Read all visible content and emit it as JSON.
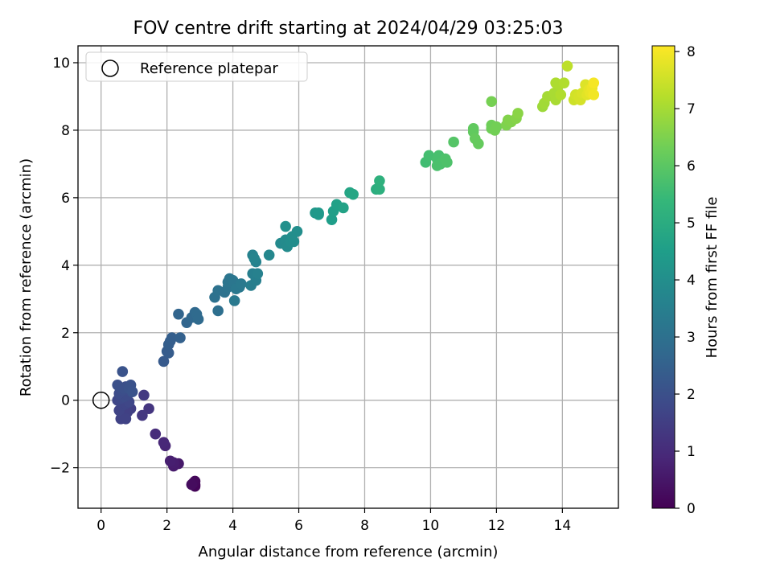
{
  "chart_data": {
    "type": "scatter",
    "title": "FOV centre drift starting at 2024/04/29 03:25:03",
    "xlabel": "Angular distance from reference (arcmin)",
    "ylabel": "Rotation from reference (arcmin)",
    "xlim": [
      -0.7,
      15.7
    ],
    "ylim": [
      -3.2,
      10.5
    ],
    "xticks": [
      0,
      2,
      4,
      6,
      8,
      10,
      12,
      14
    ],
    "yticks": [
      -2,
      0,
      2,
      4,
      6,
      8,
      10
    ],
    "xtick_labels": [
      "0",
      "2",
      "4",
      "6",
      "8",
      "10",
      "12",
      "14"
    ],
    "ytick_labels": [
      "−2",
      "0",
      "2",
      "4",
      "6",
      "8",
      "10"
    ],
    "grid": true,
    "legend": {
      "position": "top-left",
      "entries": [
        {
          "label": "Reference platepar",
          "marker": "open-circle"
        }
      ]
    },
    "reference": {
      "x": 0,
      "y": 0
    },
    "colorbar": {
      "label": "Hours from first FF file",
      "colormap": "viridis",
      "range": [
        0,
        8.1
      ],
      "ticks": [
        0,
        1,
        2,
        3,
        4,
        5,
        6,
        7,
        8
      ],
      "tick_labels": [
        "0",
        "1",
        "2",
        "3",
        "4",
        "5",
        "6",
        "7",
        "8"
      ]
    },
    "series": [
      {
        "points": [
          {
            "x": 2.85,
            "y": -2.5,
            "c": 0.05
          },
          {
            "x": 2.85,
            "y": -2.55,
            "c": 0.1
          },
          {
            "x": 2.85,
            "y": -2.4,
            "c": 0.15
          },
          {
            "x": 2.8,
            "y": -2.45,
            "c": 0.2
          },
          {
            "x": 2.75,
            "y": -2.5,
            "c": 0.25
          },
          {
            "x": 2.35,
            "y": -1.88,
            "c": 0.55
          },
          {
            "x": 2.2,
            "y": -1.95,
            "c": 0.6
          },
          {
            "x": 2.2,
            "y": -1.85,
            "c": 0.65
          },
          {
            "x": 2.1,
            "y": -1.8,
            "c": 0.7
          },
          {
            "x": 1.95,
            "y": -1.35,
            "c": 0.85
          },
          {
            "x": 1.9,
            "y": -1.25,
            "c": 0.9
          },
          {
            "x": 1.65,
            "y": -1.0,
            "c": 1.0
          },
          {
            "x": 1.45,
            "y": -0.25,
            "c": 1.25
          },
          {
            "x": 1.25,
            "y": -0.45,
            "c": 1.3
          },
          {
            "x": 1.3,
            "y": 0.15,
            "c": 1.35
          },
          {
            "x": 0.9,
            "y": -0.25,
            "c": 1.5
          },
          {
            "x": 0.8,
            "y": -0.35,
            "c": 1.55
          },
          {
            "x": 0.6,
            "y": -0.55,
            "c": 1.6
          },
          {
            "x": 0.75,
            "y": -0.55,
            "c": 1.6
          },
          {
            "x": 0.55,
            "y": -0.3,
            "c": 1.65
          },
          {
            "x": 0.65,
            "y": -0.15,
            "c": 1.7
          },
          {
            "x": 0.75,
            "y": -0.1,
            "c": 1.7
          },
          {
            "x": 0.85,
            "y": -0.05,
            "c": 1.75
          },
          {
            "x": 0.5,
            "y": 0.0,
            "c": 1.75
          },
          {
            "x": 0.6,
            "y": 0.05,
            "c": 1.8
          },
          {
            "x": 0.7,
            "y": 0.1,
            "c": 1.85
          },
          {
            "x": 0.8,
            "y": 0.15,
            "c": 1.85
          },
          {
            "x": 0.9,
            "y": 0.25,
            "c": 1.9
          },
          {
            "x": 0.55,
            "y": 0.2,
            "c": 1.9
          },
          {
            "x": 0.65,
            "y": 0.3,
            "c": 1.95
          },
          {
            "x": 0.75,
            "y": 0.4,
            "c": 1.95
          },
          {
            "x": 0.5,
            "y": 0.45,
            "c": 2.0
          },
          {
            "x": 0.7,
            "y": 0.35,
            "c": 2.0
          },
          {
            "x": 0.85,
            "y": 0.35,
            "c": 2.05
          },
          {
            "x": 0.9,
            "y": 0.45,
            "c": 2.05
          },
          {
            "x": 0.65,
            "y": 0.85,
            "c": 2.1
          },
          {
            "x": 0.95,
            "y": 0.25,
            "c": 2.1
          },
          {
            "x": 1.9,
            "y": 1.15,
            "c": 2.3
          },
          {
            "x": 2.0,
            "y": 1.45,
            "c": 2.35
          },
          {
            "x": 2.05,
            "y": 1.4,
            "c": 2.35
          },
          {
            "x": 2.05,
            "y": 1.65,
            "c": 2.4
          },
          {
            "x": 2.1,
            "y": 1.75,
            "c": 2.4
          },
          {
            "x": 2.15,
            "y": 1.85,
            "c": 2.45
          },
          {
            "x": 2.4,
            "y": 1.85,
            "c": 2.5
          },
          {
            "x": 2.35,
            "y": 2.55,
            "c": 2.6
          },
          {
            "x": 2.6,
            "y": 2.3,
            "c": 2.65
          },
          {
            "x": 2.75,
            "y": 2.45,
            "c": 2.7
          },
          {
            "x": 2.85,
            "y": 2.6,
            "c": 2.75
          },
          {
            "x": 2.9,
            "y": 2.55,
            "c": 2.8
          },
          {
            "x": 2.95,
            "y": 2.4,
            "c": 2.8
          },
          {
            "x": 3.55,
            "y": 2.65,
            "c": 2.95
          },
          {
            "x": 3.45,
            "y": 3.05,
            "c": 3.0
          },
          {
            "x": 3.55,
            "y": 3.25,
            "c": 3.05
          },
          {
            "x": 3.75,
            "y": 3.2,
            "c": 3.05
          },
          {
            "x": 3.85,
            "y": 3.35,
            "c": 3.1
          },
          {
            "x": 3.85,
            "y": 3.5,
            "c": 3.15
          },
          {
            "x": 3.9,
            "y": 3.6,
            "c": 3.15
          },
          {
            "x": 4.05,
            "y": 3.45,
            "c": 3.2
          },
          {
            "x": 4.0,
            "y": 3.55,
            "c": 3.2
          },
          {
            "x": 4.1,
            "y": 3.3,
            "c": 3.25
          },
          {
            "x": 4.2,
            "y": 3.35,
            "c": 3.25
          },
          {
            "x": 4.25,
            "y": 3.45,
            "c": 3.3
          },
          {
            "x": 4.05,
            "y": 2.95,
            "c": 3.3
          },
          {
            "x": 4.55,
            "y": 3.4,
            "c": 3.45
          },
          {
            "x": 4.7,
            "y": 3.55,
            "c": 3.5
          },
          {
            "x": 4.6,
            "y": 3.75,
            "c": 3.5
          },
          {
            "x": 4.75,
            "y": 3.75,
            "c": 3.55
          },
          {
            "x": 4.7,
            "y": 4.1,
            "c": 3.6
          },
          {
            "x": 4.6,
            "y": 4.3,
            "c": 3.6
          },
          {
            "x": 4.65,
            "y": 4.2,
            "c": 3.65
          },
          {
            "x": 5.1,
            "y": 4.3,
            "c": 3.75
          },
          {
            "x": 5.45,
            "y": 4.65,
            "c": 3.85
          },
          {
            "x": 5.6,
            "y": 4.75,
            "c": 3.9
          },
          {
            "x": 5.65,
            "y": 4.55,
            "c": 3.9
          },
          {
            "x": 5.75,
            "y": 4.7,
            "c": 3.95
          },
          {
            "x": 5.85,
            "y": 4.7,
            "c": 3.95
          },
          {
            "x": 5.8,
            "y": 4.85,
            "c": 4.0
          },
          {
            "x": 5.95,
            "y": 5.0,
            "c": 4.0
          },
          {
            "x": 5.6,
            "y": 5.15,
            "c": 4.05
          },
          {
            "x": 6.5,
            "y": 5.55,
            "c": 4.3
          },
          {
            "x": 6.6,
            "y": 5.5,
            "c": 4.35
          },
          {
            "x": 6.6,
            "y": 5.55,
            "c": 4.35
          },
          {
            "x": 7.0,
            "y": 5.35,
            "c": 4.5
          },
          {
            "x": 7.05,
            "y": 5.6,
            "c": 4.55
          },
          {
            "x": 7.15,
            "y": 5.8,
            "c": 4.6
          },
          {
            "x": 7.35,
            "y": 5.7,
            "c": 4.65
          },
          {
            "x": 7.55,
            "y": 6.15,
            "c": 4.75
          },
          {
            "x": 7.65,
            "y": 6.1,
            "c": 4.8
          },
          {
            "x": 8.35,
            "y": 6.25,
            "c": 5.05
          },
          {
            "x": 8.45,
            "y": 6.25,
            "c": 5.1
          },
          {
            "x": 8.45,
            "y": 6.5,
            "c": 5.15
          },
          {
            "x": 9.85,
            "y": 7.05,
            "c": 5.6
          },
          {
            "x": 9.95,
            "y": 7.25,
            "c": 5.65
          },
          {
            "x": 10.2,
            "y": 7.15,
            "c": 5.7
          },
          {
            "x": 10.25,
            "y": 7.25,
            "c": 5.7
          },
          {
            "x": 10.3,
            "y": 7.0,
            "c": 5.75
          },
          {
            "x": 10.2,
            "y": 6.95,
            "c": 5.75
          },
          {
            "x": 10.45,
            "y": 7.15,
            "c": 5.8
          },
          {
            "x": 10.5,
            "y": 7.05,
            "c": 5.8
          },
          {
            "x": 10.7,
            "y": 7.65,
            "c": 5.9
          },
          {
            "x": 11.3,
            "y": 7.95,
            "c": 6.1
          },
          {
            "x": 11.3,
            "y": 8.05,
            "c": 6.1
          },
          {
            "x": 11.35,
            "y": 7.75,
            "c": 6.15
          },
          {
            "x": 11.45,
            "y": 7.6,
            "c": 6.15
          },
          {
            "x": 11.85,
            "y": 8.05,
            "c": 6.3
          },
          {
            "x": 11.85,
            "y": 8.15,
            "c": 6.3
          },
          {
            "x": 11.95,
            "y": 8.0,
            "c": 6.35
          },
          {
            "x": 12.0,
            "y": 8.1,
            "c": 6.35
          },
          {
            "x": 11.85,
            "y": 8.85,
            "c": 6.4
          },
          {
            "x": 12.3,
            "y": 8.15,
            "c": 6.5
          },
          {
            "x": 12.35,
            "y": 8.3,
            "c": 6.55
          },
          {
            "x": 12.45,
            "y": 8.25,
            "c": 6.55
          },
          {
            "x": 12.6,
            "y": 8.35,
            "c": 6.6
          },
          {
            "x": 12.65,
            "y": 8.5,
            "c": 6.65
          },
          {
            "x": 13.4,
            "y": 8.7,
            "c": 6.9
          },
          {
            "x": 13.45,
            "y": 8.8,
            "c": 6.95
          },
          {
            "x": 13.55,
            "y": 9.0,
            "c": 7.0
          },
          {
            "x": 13.75,
            "y": 9.1,
            "c": 7.05
          },
          {
            "x": 13.8,
            "y": 8.9,
            "c": 7.05
          },
          {
            "x": 13.8,
            "y": 9.4,
            "c": 7.1
          },
          {
            "x": 13.9,
            "y": 9.35,
            "c": 7.1
          },
          {
            "x": 13.95,
            "y": 9.05,
            "c": 7.15
          },
          {
            "x": 14.05,
            "y": 9.4,
            "c": 7.15
          },
          {
            "x": 14.15,
            "y": 9.9,
            "c": 7.3
          },
          {
            "x": 14.35,
            "y": 8.9,
            "c": 7.5
          },
          {
            "x": 14.4,
            "y": 9.05,
            "c": 7.55
          },
          {
            "x": 14.5,
            "y": 9.0,
            "c": 7.6
          },
          {
            "x": 14.55,
            "y": 8.9,
            "c": 7.6
          },
          {
            "x": 14.6,
            "y": 9.1,
            "c": 7.65
          },
          {
            "x": 14.7,
            "y": 9.35,
            "c": 7.7
          },
          {
            "x": 14.75,
            "y": 9.05,
            "c": 7.75
          },
          {
            "x": 14.8,
            "y": 9.2,
            "c": 7.8
          },
          {
            "x": 14.85,
            "y": 9.1,
            "c": 7.85
          },
          {
            "x": 14.9,
            "y": 9.25,
            "c": 7.9
          },
          {
            "x": 14.95,
            "y": 9.05,
            "c": 7.95
          },
          {
            "x": 14.95,
            "y": 9.4,
            "c": 8.0
          }
        ]
      }
    ]
  }
}
